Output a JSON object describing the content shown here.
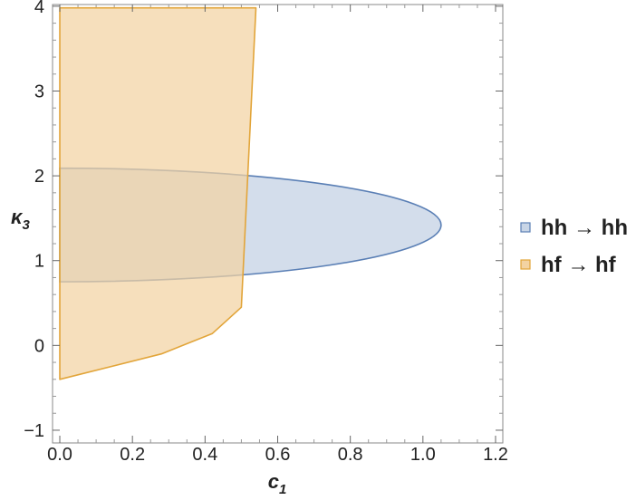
{
  "chart_data": {
    "type": "area",
    "xlabel": "c",
    "xlabel_sub": "1",
    "ylabel": "κ",
    "ylabel_sub": "3",
    "xlim": [
      -0.02,
      1.22
    ],
    "ylim": [
      -1.15,
      4.02
    ],
    "xticks": [
      0.0,
      0.2,
      0.4,
      0.6,
      0.8,
      1.0,
      1.2
    ],
    "xtick_labels": [
      "0.0",
      "0.2",
      "0.4",
      "0.6",
      "0.8",
      "1.0",
      "1.2"
    ],
    "yticks": [
      -1,
      0,
      1,
      2,
      3,
      4
    ],
    "ytick_labels": [
      "−1",
      "0",
      "1",
      "2",
      "3",
      "4"
    ],
    "legend_position": "right",
    "series": [
      {
        "name": "hh → hh",
        "color": "#5a7fb5",
        "fill": "#c8d5e6",
        "shape": "half-ellipse",
        "x_center": 0.0,
        "y_center": 1.42,
        "x_extent": 1.05,
        "y_min": 0.75,
        "y_max": 2.09
      },
      {
        "name": "hf → hf",
        "color": "#e2a53a",
        "fill": "#f3d3a2",
        "shape": "polygon",
        "x": [
          0.0,
          0.54,
          0.5,
          0.42,
          0.28,
          0.0
        ],
        "y": [
          3.98,
          3.98,
          0.45,
          0.14,
          -0.1,
          -0.4
        ]
      }
    ]
  }
}
